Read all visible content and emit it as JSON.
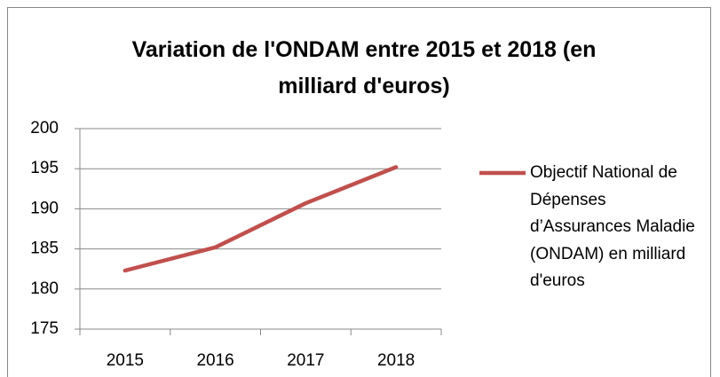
{
  "chart_data": {
    "type": "line",
    "title": "Variation de l'ONDAM entre 2015 et 2018 (en milliard d'euros)",
    "categories": [
      "2015",
      "2016",
      "2017",
      "2018"
    ],
    "series": [
      {
        "name": "Objectif National de Dépenses d’Assurances Maladie (ONDAM) en milliard d'euros",
        "color": "#c0504d",
        "values": [
          182.3,
          185.2,
          190.7,
          195.2
        ]
      }
    ],
    "ylim": [
      175,
      200
    ],
    "yticks": [
      175,
      180,
      185,
      190,
      195,
      200
    ],
    "grid": true,
    "legend": "right"
  }
}
